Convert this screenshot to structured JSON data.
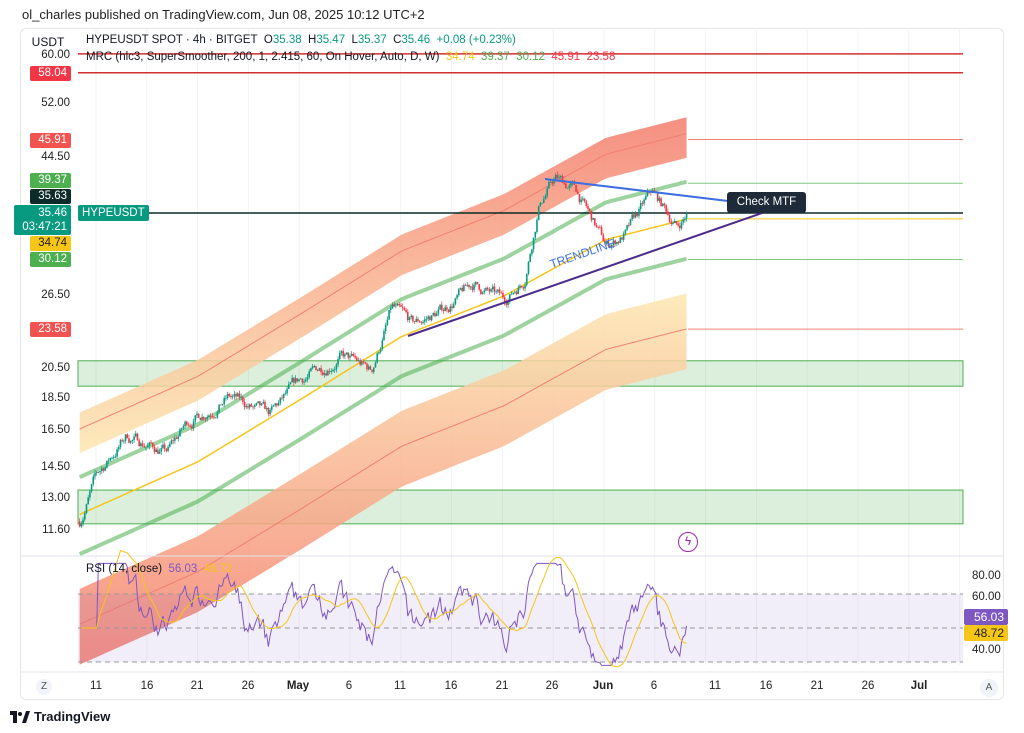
{
  "publish_line": "ol_charles published on TradingView.com, Jun 08, 2025 10:12 UTC+2",
  "currency": "USDT",
  "legend": {
    "symbol": "HYPEUSDT SPOT · 4h · BITGET",
    "o_label": "O",
    "o": "35.38",
    "h_label": "H",
    "h": "35.47",
    "l_label": "L",
    "l": "35.37",
    "c_label": "C",
    "c": "35.46",
    "change": "+0.08 (+0.23%)",
    "indicator": "MRC (hlc3, SuperSmoother, 200, 1, 2.415, 60, On Hover, Auto, D, W)",
    "v1": "34.74",
    "v2": "39.37",
    "v3": "30.12",
    "v4": "45.91",
    "v5": "23.58"
  },
  "price_axis": [
    "60.00",
    "52.00",
    "44.50",
    "26.50",
    "20.50",
    "18.50",
    "16.50",
    "14.50",
    "13.00",
    "11.60"
  ],
  "price_labels": {
    "r1": "58.04",
    "r2": "45.91",
    "g1": "39.37",
    "dark": "35.63",
    "last": "35.46",
    "countdown": "03:47:21",
    "y": "34.74",
    "g2": "30.12",
    "r3": "23.58"
  },
  "symbol_tag": "HYPEUSDT",
  "annotation": "Check MTF",
  "trendline_text": "TRENDLINE",
  "rsi": {
    "label": "RSI (14, close)",
    "v": "56.03",
    "ma": "48.72",
    "axis": [
      "80.00",
      "60.00",
      "40.00"
    ]
  },
  "time_axis": [
    "11",
    "16",
    "21",
    "26",
    "May",
    "6",
    "11",
    "16",
    "21",
    "26",
    "Jun",
    "6",
    "11",
    "16",
    "21",
    "26",
    "Jul"
  ],
  "auto_btn": "A",
  "z_btn": "Z",
  "brand": "TradingView",
  "colors": {
    "up": "#089981",
    "down": "#f23645",
    "mean": "#f5c518",
    "inner": "#4caf50",
    "purple": "#7e57c2",
    "blue": "#3d6fe0"
  },
  "chart_data": {
    "type": "candlestick",
    "price_path": [
      [
        -1.6,
        12
      ],
      [
        0,
        14
      ],
      [
        3,
        16.2
      ],
      [
        7,
        15.3
      ],
      [
        9,
        17
      ],
      [
        13,
        18.6
      ],
      [
        17,
        17.3
      ],
      [
        20,
        19.6
      ],
      [
        24,
        21.5
      ],
      [
        27,
        20.3
      ],
      [
        29,
        25.3
      ],
      [
        31,
        23.8
      ],
      [
        34,
        25.2
      ],
      [
        37,
        27.6
      ],
      [
        40,
        26
      ],
      [
        42,
        28.2
      ],
      [
        43.5,
        37
      ],
      [
        45,
        40
      ],
      [
        47,
        38.5
      ],
      [
        50,
        31.5
      ],
      [
        52,
        33
      ],
      [
        54.5,
        38
      ],
      [
        57,
        33.8
      ],
      [
        58,
        35.46
      ]
    ],
    "mean_path": [
      [
        -1.6,
        12.3
      ],
      [
        10,
        14.8
      ],
      [
        20,
        18.4
      ],
      [
        30,
        23
      ],
      [
        40,
        26.5
      ],
      [
        50,
        32.3
      ],
      [
        58,
        34.74
      ]
    ],
    "zones": [
      [
        19.3,
        21.1
      ],
      [
        11.9,
        13.4
      ]
    ],
    "levels": [
      62,
      58.04
    ]
  }
}
